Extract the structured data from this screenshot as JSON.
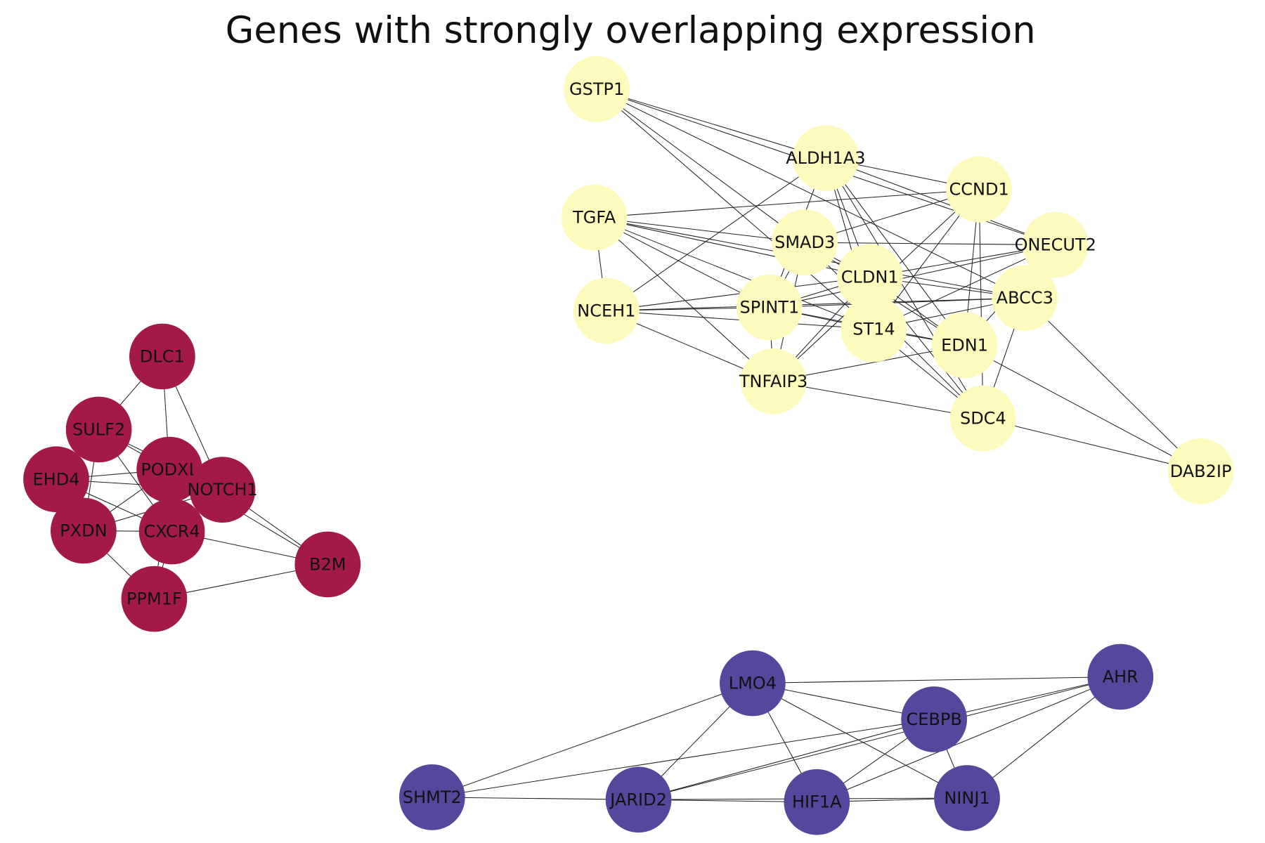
{
  "title": "Genes with strongly overlapping expression",
  "clusters": [
    {
      "color": "#fcfbbd",
      "nodes": [
        "GSTP1",
        "ALDH1A3",
        "CCND1",
        "TGFA",
        "SMAD3",
        "ONECUT2",
        "CLDN1",
        "ABCC3",
        "NCEH1",
        "SPINT1",
        "ST14",
        "EDN1",
        "TNFAIP3",
        "SDC4",
        "DAB2IP"
      ]
    },
    {
      "color": "#a31a48",
      "nodes": [
        "DLC1",
        "SULF2",
        "EHD4",
        "PODXL",
        "NOTCH1",
        "PXDN",
        "CXCR4",
        "B2M",
        "PPM1F"
      ]
    },
    {
      "color": "#56479c",
      "nodes": [
        "LMO4",
        "AHR",
        "CEBPB",
        "SHMT2",
        "JARID2",
        "HIF1A",
        "NINJ1"
      ]
    }
  ]
}
